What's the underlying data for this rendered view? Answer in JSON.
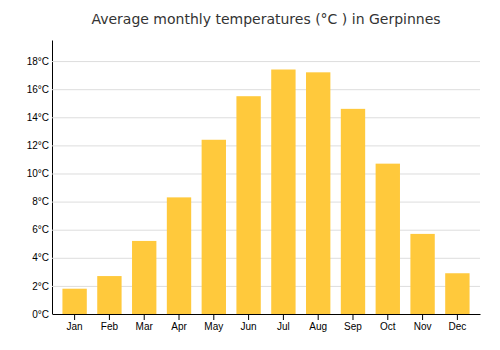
{
  "chart_data": {
    "type": "bar",
    "title": "Average monthly temperatures (°C ) in Gerpinnes",
    "categories": [
      "Jan",
      "Feb",
      "Mar",
      "Apr",
      "May",
      "Jun",
      "Jul",
      "Aug",
      "Sep",
      "Oct",
      "Nov",
      "Dec"
    ],
    "values": [
      1.8,
      2.7,
      5.2,
      8.3,
      12.4,
      15.5,
      17.4,
      17.2,
      14.6,
      10.7,
      5.7,
      2.9
    ],
    "color": "#FFC93C",
    "ylim": [
      0,
      19.5
    ],
    "yticks": [
      {
        "value": 0,
        "label": "0°C"
      },
      {
        "value": 2,
        "label": "2°C"
      },
      {
        "value": 4,
        "label": "4°C"
      },
      {
        "value": 6,
        "label": "6°C"
      },
      {
        "value": 8,
        "label": "8°C"
      },
      {
        "value": 10,
        "label": "10°C"
      },
      {
        "value": 12,
        "label": "12°C"
      },
      {
        "value": 14,
        "label": "14°C"
      },
      {
        "value": 16,
        "label": "16°C"
      },
      {
        "value": 18,
        "label": "18°C"
      }
    ],
    "grid": true
  }
}
